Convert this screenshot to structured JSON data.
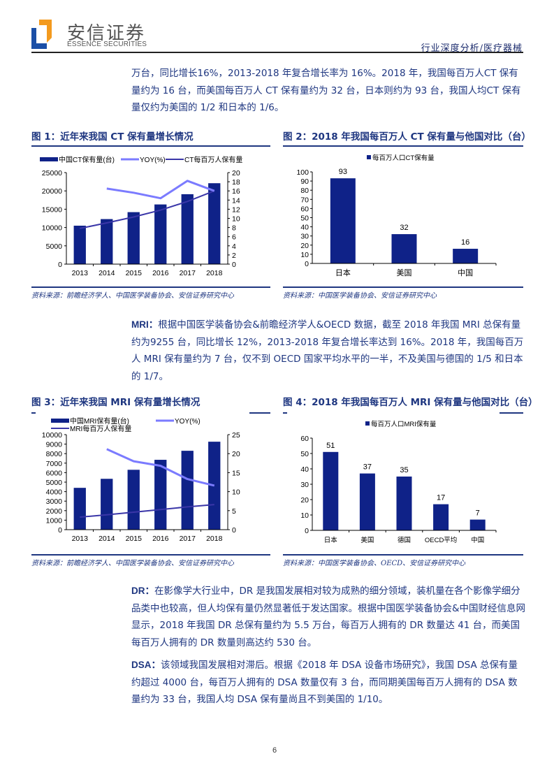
{
  "header": {
    "logo_cn": "安信证券",
    "logo_en": "ESSENCE SECURITIES",
    "section": "行业深度分析/医疗器械",
    "logo_colors": {
      "orange": "#f39a1e",
      "blue": "#1b4fa6"
    }
  },
  "paragraphs": {
    "ct_cont": "万台，同比增长16%，2013-2018 年复合增长率为 16%。2018 年，我国每百万人CT 保有量约为 16 台，而美国每百万人 CT 保有量约为 32 台，日本则约为 93 台，我国人均CT 保有量仅约为美国的 1/2 和日本的 1/6。",
    "mri_label": "MRI：",
    "mri_body": "根据中国医学装备协会&前瞻经济学人&OECD 数据，截至 2018 年我国 MRI 总保有量约为9255 台，同比增长 12%，2013-2018 年复合增长率达到 16%。2018 年，我国每百万人 MRI 保有量约为 7 台，仅不到 OECD 国家平均水平的一半，不及美国与德国的 1/5 和日本的 1/7。",
    "dr_label": "DR：",
    "dr_body": "在影像学大行业中，DR 是我国发展相对较为成熟的细分领域，装机量在各个影像学细分品类中也较高，但人均保有量仍然显著低于发达国家。根据中国医学装备协会&中国财经信息网显示，2018 年我国 DR 总保有量约为 5.5 万台，每百万人拥有的 DR 数量达 41 台，而美国每百万人拥有的 DR 数量则高达约 530 台。",
    "dsa_label": "DSA：",
    "dsa_body": "该领域我国发展相对滞后。根据《2018 年 DSA 设备市场研究》，我国 DSA 总保有量约超过 4000 台，每百万人拥有的 DSA 数量仅有 3 台，而同期美国每百万人拥有的 DSA 数量约为 33 台，我国人均 DSA 保有量尚且不到美国的 1/10。"
  },
  "figures": {
    "fig1": {
      "title": "图 1：近年来我国 CT 保有量增长情况",
      "source": "资料来源：前瞻经济学人、中国医学装备协会、安信证券研究中心"
    },
    "fig2": {
      "title": "图 2：2018 年我国每百万人 CT 保有量与他国对比（台）",
      "source": "资料来源：中国医学装备协会、安信证券研究中心"
    },
    "fig3": {
      "title": "图 3：近年来我国 MRI 保有量增长情况",
      "source": "资料来源：前瞻经济学人、中国医学装备协会、安信证券研究中心"
    },
    "fig4": {
      "title": "图 4：2018 年我国每百万人 MRI 保有量与他国对比（台）",
      "source": "资料来源：中国医学装备协会、OECD、安信证券研究中心"
    }
  },
  "colors": {
    "bar": "#0f2288",
    "yoy": "#7b7bff",
    "per_million": "#3a36a8",
    "text": "#1e3680"
  },
  "page_number": "6",
  "chart_data": [
    {
      "id": "fig1",
      "type": "bar",
      "title": "近年来我国 CT 保有量增长情况",
      "categories": [
        "2013",
        "2014",
        "2015",
        "2016",
        "2017",
        "2018"
      ],
      "series": [
        {
          "name": "中国CT保有量(台)",
          "kind": "bar",
          "axis": "left",
          "values": [
            10500,
            12300,
            14200,
            16300,
            19100,
            22100
          ]
        },
        {
          "name": "YOY(%)",
          "kind": "line",
          "axis": "right",
          "values": [
            null,
            16.5,
            15.6,
            14.4,
            18.2,
            16.0
          ]
        },
        {
          "name": "CT每百万人保有量",
          "kind": "line",
          "axis": "right",
          "values": [
            7.8,
            9.0,
            10.3,
            11.8,
            13.7,
            16.0
          ]
        }
      ],
      "ylim_left": [
        0,
        25000
      ],
      "yticks_left": [
        0,
        5000,
        10000,
        15000,
        20000,
        25000
      ],
      "ylim_right": [
        0,
        20
      ],
      "yticks_right": [
        0,
        2,
        4,
        6,
        8,
        10,
        12,
        14,
        16,
        18,
        20
      ],
      "legend_position": "top",
      "grid": false
    },
    {
      "id": "fig2",
      "type": "bar",
      "title": "2018 年我国每百万人 CT 保有量与他国对比（台）",
      "categories": [
        "日本",
        "美国",
        "中国"
      ],
      "series": [
        {
          "name": "每百万人口CT保有量",
          "values": [
            93,
            32,
            16
          ]
        }
      ],
      "ylim": [
        0,
        100
      ],
      "yticks": [
        0,
        10,
        20,
        30,
        40,
        50,
        60,
        70,
        80,
        90,
        100
      ],
      "legend_position": "top",
      "grid": false,
      "data_labels": true
    },
    {
      "id": "fig3",
      "type": "bar",
      "title": "近年来我国 MRI 保有量增长情况",
      "categories": [
        "2013",
        "2014",
        "2015",
        "2016",
        "2017",
        "2018"
      ],
      "series": [
        {
          "name": "中国MRI保有量(台)",
          "kind": "bar",
          "axis": "left",
          "values": [
            4400,
            5350,
            6300,
            7350,
            8300,
            9255
          ]
        },
        {
          "name": "YOY(%)",
          "kind": "line",
          "axis": "right",
          "values": [
            null,
            21.2,
            18.0,
            16.8,
            13.3,
            11.6
          ]
        },
        {
          "name": "MRI每百万人保有量",
          "kind": "line",
          "axis": "right",
          "values": [
            3.3,
            3.9,
            4.6,
            5.3,
            6.0,
            6.6
          ]
        }
      ],
      "ylim_left": [
        0,
        10000
      ],
      "yticks_left": [
        0,
        1000,
        2000,
        3000,
        4000,
        5000,
        6000,
        7000,
        8000,
        9000,
        10000
      ],
      "ylim_right": [
        0,
        25
      ],
      "yticks_right": [
        0,
        5,
        10,
        15,
        20,
        25
      ],
      "legend_position": "top",
      "grid": false
    },
    {
      "id": "fig4",
      "type": "bar",
      "title": "2018 年我国每百万人 MRI 保有量与他国对比（台）",
      "categories": [
        "日本",
        "美国",
        "德国",
        "OECD平均",
        "中国"
      ],
      "series": [
        {
          "name": "每百万人口MRI保有量",
          "values": [
            51,
            37,
            35,
            17,
            7
          ]
        }
      ],
      "ylim": [
        0,
        60
      ],
      "yticks": [
        0,
        10,
        20,
        30,
        40,
        50,
        60
      ],
      "legend_position": "top",
      "grid": false,
      "data_labels": true
    }
  ]
}
